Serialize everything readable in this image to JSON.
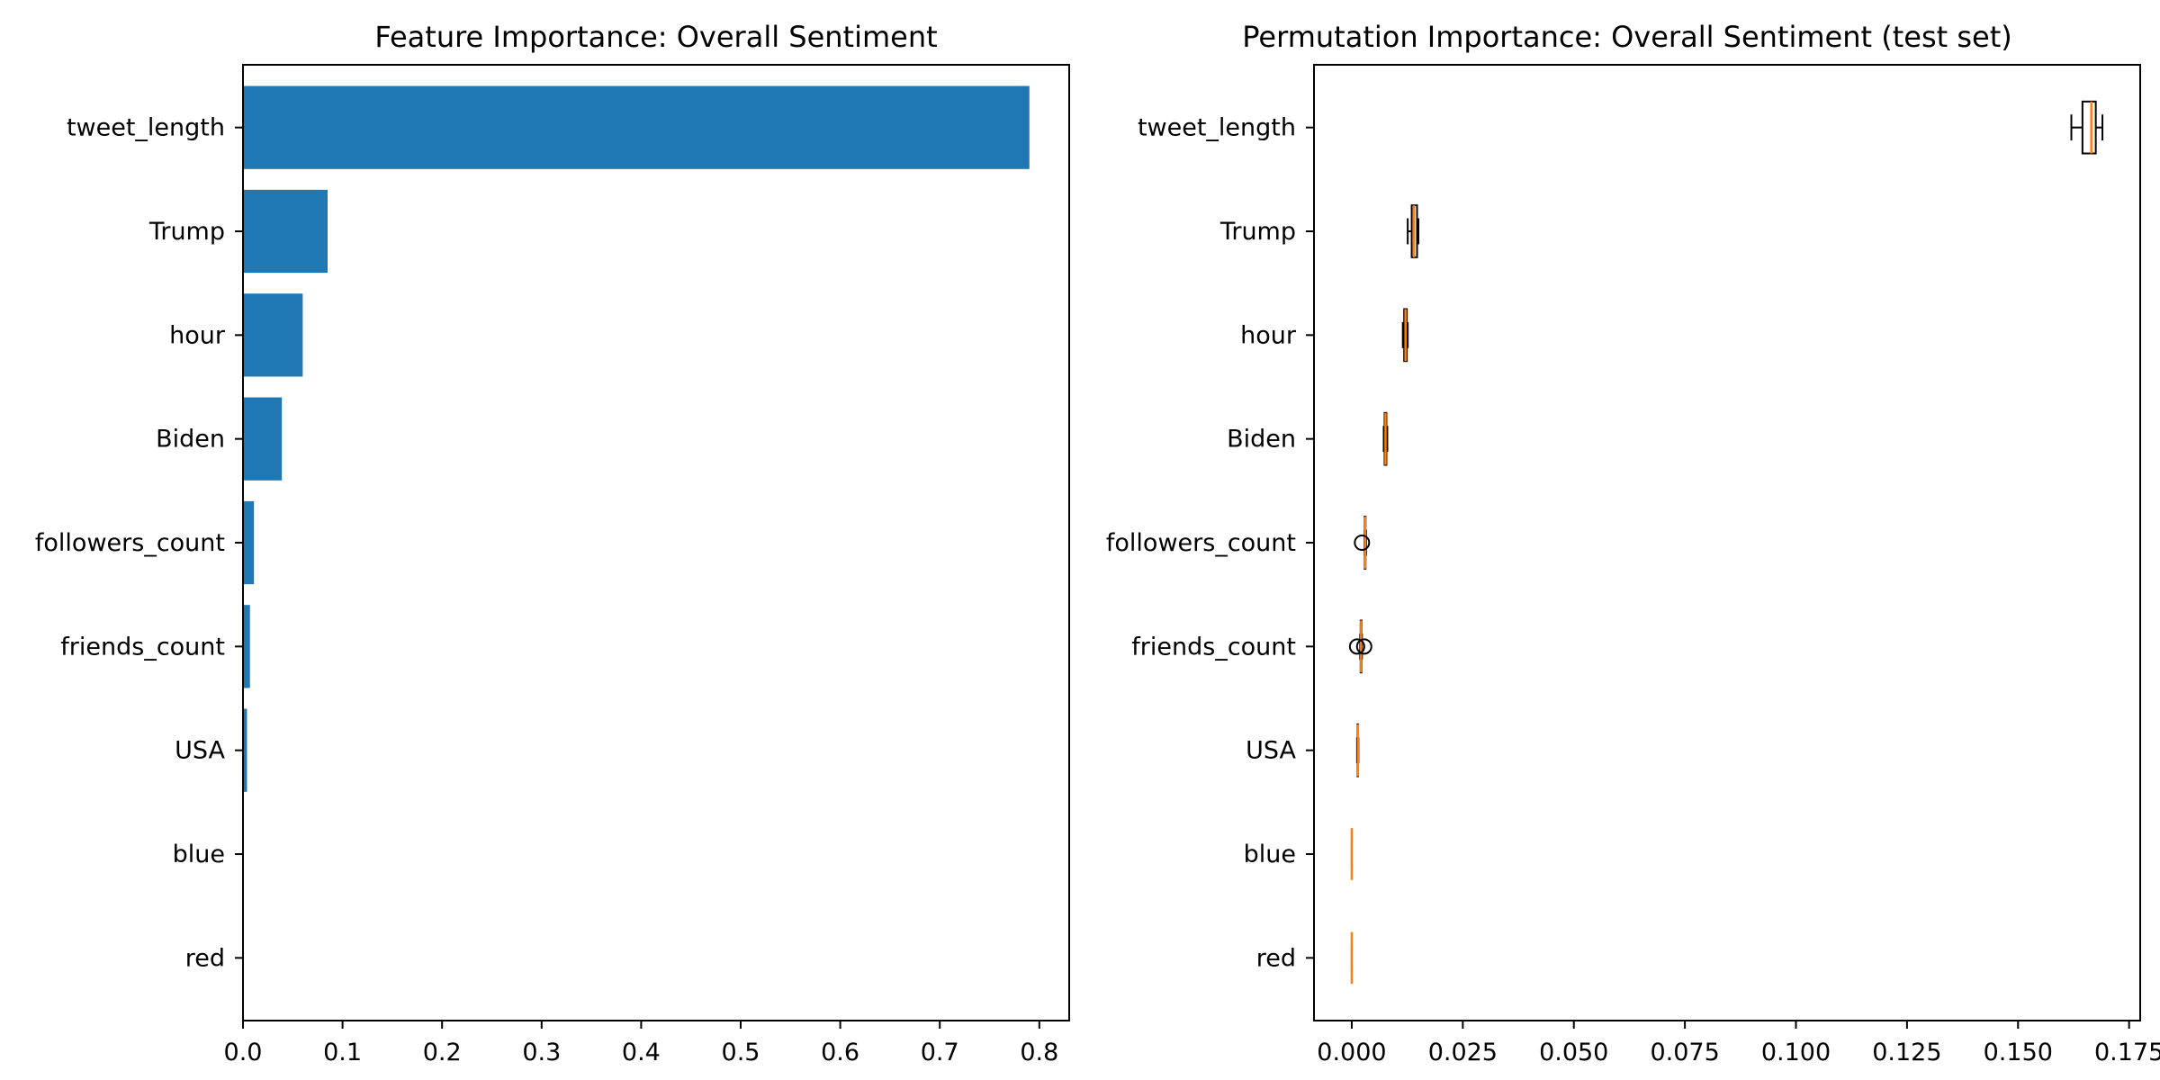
{
  "colors": {
    "bar": "#1f77b4",
    "median": "#ff7f0e",
    "axis": "#000000"
  },
  "chart_data": [
    {
      "type": "bar",
      "orientation": "horizontal",
      "title": "Feature Importance: Overall Sentiment",
      "xlabel": "",
      "ylabel": "",
      "xlim": [
        0,
        0.83
      ],
      "xticks": [
        0,
        0.1,
        0.2,
        0.3,
        0.4,
        0.5,
        0.6,
        0.7,
        0.8
      ],
      "xtick_labels": [
        "0.0",
        "0.1",
        "0.2",
        "0.3",
        "0.4",
        "0.5",
        "0.6",
        "0.7",
        "0.8"
      ],
      "categories": [
        "tweet_length",
        "Trump",
        "hour",
        "Biden",
        "followers_count",
        "friends_count",
        "USA",
        "blue",
        "red"
      ],
      "values": [
        0.79,
        0.085,
        0.06,
        0.039,
        0.011,
        0.007,
        0.004,
        0.0,
        0.0
      ],
      "grid": false,
      "legend": "none"
    },
    {
      "type": "box",
      "orientation": "horizontal",
      "title": "Permutation Importance: Overall Sentiment (test set)",
      "xlabel": "",
      "ylabel": "",
      "xlim": [
        -0.0085,
        0.1775
      ],
      "xticks": [
        0,
        0.025,
        0.05,
        0.075,
        0.1,
        0.125,
        0.15,
        0.175
      ],
      "xtick_labels": [
        "0.000",
        "0.025",
        "0.050",
        "0.075",
        "0.100",
        "0.125",
        "0.150",
        "0.175"
      ],
      "categories": [
        "tweet_length",
        "Trump",
        "hour",
        "Biden",
        "followers_count",
        "friends_count",
        "USA",
        "blue",
        "red"
      ],
      "boxes": [
        {
          "whislo": 0.162,
          "q1": 0.1645,
          "med": 0.1665,
          "q3": 0.1675,
          "whishi": 0.169,
          "fliers": []
        },
        {
          "whislo": 0.0126,
          "q1": 0.0135,
          "med": 0.014,
          "q3": 0.0147,
          "whishi": 0.015,
          "fliers": []
        },
        {
          "whislo": 0.0115,
          "q1": 0.0118,
          "med": 0.0121,
          "q3": 0.0124,
          "whishi": 0.0126,
          "fliers": []
        },
        {
          "whislo": 0.0072,
          "q1": 0.0074,
          "med": 0.0076,
          "q3": 0.0078,
          "whishi": 0.008,
          "fliers": []
        },
        {
          "whislo": 0.0029,
          "q1": 0.0029,
          "med": 0.003,
          "q3": 0.0031,
          "whishi": 0.0032,
          "fliers": [
            0.0023
          ]
        },
        {
          "whislo": 0.0019,
          "q1": 0.002,
          "med": 0.0021,
          "q3": 0.0022,
          "whishi": 0.0023,
          "fliers": [
            0.0012,
            0.0028
          ]
        },
        {
          "whislo": 0.0012,
          "q1": 0.0013,
          "med": 0.0014,
          "q3": 0.0014,
          "whishi": 0.0015,
          "fliers": []
        },
        {
          "whislo": 0.0,
          "q1": 0.0,
          "med": 0.0,
          "q3": 0.0,
          "whishi": 0.0,
          "fliers": []
        },
        {
          "whislo": 0.0,
          "q1": 0.0,
          "med": 0.0,
          "q3": 0.0,
          "whishi": 0.0,
          "fliers": []
        }
      ],
      "grid": false,
      "legend": "none"
    }
  ]
}
